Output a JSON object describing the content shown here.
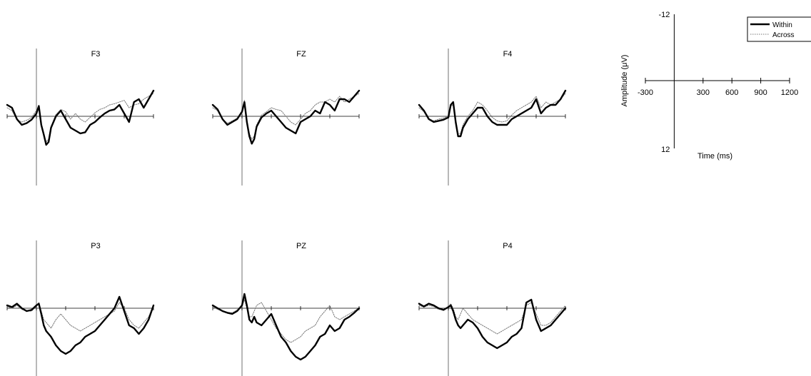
{
  "chart_data": {
    "type": "line",
    "xlabel": "Time (ms)",
    "ylabel": "Amplitude (μV)",
    "xlim": [
      -300,
      1200
    ],
    "ylim": [
      -12,
      12
    ],
    "y_inverted": true,
    "x_ticks": [
      -300,
      300,
      600,
      900,
      1200
    ],
    "y_ticks": [
      -12,
      12
    ],
    "legend": {
      "position": "top-right",
      "entries": [
        {
          "name": "Within",
          "style": "thick-solid",
          "color": "#000000"
        },
        {
          "name": "Across",
          "style": "thin-dotted",
          "color": "#777777"
        }
      ]
    },
    "panels": [
      {
        "name": "F3",
        "x": [
          -300,
          -250,
          -200,
          -150,
          -100,
          -50,
          0,
          25,
          50,
          75,
          100,
          125,
          150,
          200,
          250,
          300,
          350,
          400,
          450,
          500,
          550,
          600,
          650,
          700,
          750,
          800,
          850,
          900,
          950,
          1000,
          1050,
          1100,
          1150,
          1200
        ],
        "series": [
          {
            "name": "Within",
            "values": [
              -2.0,
              -1.5,
              0.5,
              1.5,
              1.2,
              0.6,
              -0.5,
              -1.8,
              1.5,
              3.2,
              5.0,
              4.5,
              2.0,
              0.0,
              -1.0,
              0.5,
              2.0,
              2.5,
              3.0,
              2.8,
              1.5,
              1.0,
              0.2,
              -0.5,
              -1.0,
              -1.2,
              -2.0,
              -0.5,
              1.0,
              -2.5,
              -3.0,
              -1.5,
              -3.0,
              -4.5
            ]
          },
          {
            "name": "Across",
            "values": [
              -1.5,
              -1.0,
              0.6,
              1.0,
              0.7,
              0.2,
              -1.0,
              -2.0,
              1.5,
              3.0,
              4.5,
              4.0,
              1.8,
              -0.3,
              -1.2,
              -0.8,
              0.5,
              -0.5,
              0.5,
              1.0,
              0.2,
              -0.6,
              -1.2,
              -1.5,
              -2.0,
              -2.2,
              -2.5,
              -2.8,
              -1.5,
              -2.0,
              -2.2,
              -3.0,
              -3.5,
              -4.0
            ]
          }
        ]
      },
      {
        "name": "FZ",
        "x": [
          -300,
          -250,
          -200,
          -150,
          -100,
          -50,
          0,
          25,
          50,
          75,
          100,
          125,
          150,
          200,
          250,
          300,
          350,
          400,
          450,
          500,
          550,
          600,
          650,
          700,
          750,
          800,
          850,
          900,
          950,
          1000,
          1050,
          1100,
          1150,
          1200
        ],
        "series": [
          {
            "name": "Within",
            "values": [
              -2.0,
              -1.2,
              0.5,
              1.5,
              1.0,
              0.5,
              -0.8,
              -2.5,
              1.0,
              3.5,
              4.8,
              4.0,
              1.8,
              0.2,
              -0.5,
              -1.0,
              0.0,
              1.0,
              2.0,
              2.5,
              3.0,
              1.0,
              0.5,
              0.0,
              -1.0,
              -0.5,
              -2.5,
              -2.0,
              -1.0,
              -3.0,
              -3.0,
              -2.5,
              -3.5,
              -4.5
            ]
          },
          {
            "name": "Across",
            "values": [
              -1.5,
              -1.0,
              0.5,
              1.2,
              0.8,
              0.3,
              -1.0,
              -2.8,
              1.0,
              3.0,
              4.0,
              3.5,
              1.5,
              -0.2,
              -0.8,
              -1.5,
              -1.2,
              -1.0,
              0.0,
              1.0,
              1.5,
              0.5,
              -0.5,
              -1.0,
              -2.0,
              -2.5,
              -2.5,
              -3.0,
              -2.5,
              -3.5,
              -2.5,
              -3.0,
              -3.5,
              -4.0
            ]
          }
        ]
      },
      {
        "name": "F4",
        "x": [
          -300,
          -250,
          -200,
          -150,
          -100,
          -50,
          0,
          25,
          50,
          75,
          100,
          125,
          150,
          200,
          250,
          300,
          350,
          400,
          450,
          500,
          550,
          600,
          650,
          700,
          750,
          800,
          850,
          900,
          950,
          1000,
          1050,
          1100,
          1150,
          1200
        ],
        "series": [
          {
            "name": "Within",
            "values": [
              -2.0,
              -1.0,
              0.5,
              1.0,
              0.8,
              0.6,
              0.2,
              -2.0,
              -2.5,
              1.0,
              3.5,
              3.5,
              2.0,
              0.5,
              -0.5,
              -1.5,
              -1.5,
              0.0,
              1.0,
              1.5,
              1.5,
              1.5,
              0.5,
              0.0,
              -0.5,
              -1.0,
              -1.5,
              -3.0,
              -0.5,
              -1.5,
              -2.0,
              -2.0,
              -3.0,
              -4.5
            ]
          },
          {
            "name": "Across",
            "values": [
              -1.5,
              -0.8,
              0.4,
              0.8,
              0.5,
              0.3,
              0.0,
              -1.8,
              -2.0,
              1.0,
              3.0,
              3.0,
              1.5,
              0.0,
              -1.0,
              -2.5,
              -2.0,
              -1.0,
              0.2,
              0.8,
              1.0,
              0.8,
              -0.2,
              -1.0,
              -1.5,
              -2.0,
              -2.5,
              -3.5,
              -1.5,
              -2.5,
              -2.0,
              -2.5,
              -3.0,
              -4.0
            ]
          }
        ]
      },
      {
        "name": "P3",
        "x": [
          -300,
          -250,
          -200,
          -150,
          -100,
          -50,
          0,
          25,
          50,
          75,
          100,
          125,
          150,
          200,
          250,
          300,
          350,
          400,
          450,
          500,
          550,
          600,
          650,
          700,
          750,
          800,
          850,
          900,
          950,
          1000,
          1050,
          1100,
          1150,
          1200
        ],
        "series": [
          {
            "name": "Within",
            "values": [
              -0.5,
              -0.2,
              -0.8,
              0.0,
              0.5,
              0.3,
              -0.5,
              -0.8,
              1.0,
              3.0,
              4.0,
              4.5,
              5.0,
              6.5,
              7.5,
              8.0,
              7.5,
              6.5,
              6.0,
              5.0,
              4.5,
              4.0,
              3.0,
              2.0,
              1.0,
              0.0,
              -2.0,
              0.5,
              3.0,
              3.5,
              4.5,
              3.5,
              2.0,
              -0.5
            ]
          },
          {
            "name": "Across",
            "values": [
              -0.3,
              0.0,
              -0.5,
              0.2,
              0.5,
              0.5,
              -0.3,
              -1.0,
              0.5,
              2.0,
              2.5,
              3.0,
              3.5,
              2.0,
              1.0,
              2.0,
              3.0,
              3.5,
              4.0,
              3.5,
              3.0,
              2.5,
              2.0,
              1.5,
              1.0,
              0.5,
              -1.0,
              0.0,
              2.0,
              3.0,
              3.5,
              2.5,
              1.5,
              -0.5
            ]
          }
        ]
      },
      {
        "name": "PZ",
        "x": [
          -300,
          -250,
          -200,
          -150,
          -100,
          -50,
          0,
          25,
          50,
          75,
          100,
          125,
          150,
          200,
          250,
          300,
          350,
          400,
          450,
          500,
          550,
          600,
          650,
          700,
          750,
          800,
          850,
          900,
          950,
          1000,
          1050,
          1100,
          1150,
          1200
        ],
        "series": [
          {
            "name": "Within",
            "values": [
              -0.5,
              0.0,
              0.5,
              0.8,
              1.0,
              0.5,
              -0.5,
              -2.5,
              -0.5,
              2.0,
              2.5,
              1.5,
              2.5,
              3.0,
              2.0,
              1.0,
              3.0,
              5.0,
              6.0,
              7.5,
              8.5,
              9.0,
              8.5,
              7.5,
              6.5,
              5.0,
              4.5,
              3.0,
              4.0,
              3.5,
              2.0,
              1.5,
              0.8,
              0.0
            ]
          },
          {
            "name": "Across",
            "values": [
              -0.3,
              0.2,
              0.5,
              0.7,
              0.8,
              0.3,
              -0.3,
              -1.5,
              0.0,
              1.5,
              1.5,
              0.5,
              -0.5,
              -1.0,
              0.5,
              2.0,
              3.5,
              4.5,
              5.5,
              6.0,
              5.5,
              5.0,
              4.0,
              3.5,
              3.0,
              1.5,
              0.5,
              -0.5,
              1.5,
              2.0,
              1.5,
              1.0,
              0.5,
              0.0
            ]
          }
        ]
      },
      {
        "name": "P4",
        "x": [
          -300,
          -250,
          -200,
          -150,
          -100,
          -50,
          0,
          25,
          50,
          75,
          100,
          125,
          150,
          200,
          250,
          300,
          350,
          400,
          450,
          500,
          550,
          600,
          650,
          700,
          750,
          800,
          850,
          900,
          950,
          1000,
          1050,
          1100,
          1150,
          1200
        ],
        "series": [
          {
            "name": "Within",
            "values": [
              -0.8,
              -0.3,
              -0.8,
              -0.5,
              0.0,
              0.3,
              -0.2,
              -0.5,
              0.5,
              2.0,
              3.0,
              3.5,
              3.0,
              2.0,
              2.5,
              3.5,
              5.0,
              6.0,
              6.5,
              7.0,
              6.5,
              6.0,
              5.0,
              4.5,
              3.5,
              -1.0,
              -1.5,
              2.0,
              4.0,
              3.5,
              3.0,
              2.0,
              1.0,
              0.0
            ]
          },
          {
            "name": "Across",
            "values": [
              -0.5,
              -0.2,
              -0.5,
              -0.3,
              0.2,
              0.3,
              -0.2,
              -0.8,
              0.0,
              1.5,
              2.0,
              1.0,
              0.0,
              1.0,
              2.0,
              2.5,
              3.0,
              3.5,
              4.0,
              4.5,
              4.0,
              3.5,
              3.0,
              2.5,
              2.0,
              -0.5,
              -1.0,
              1.0,
              3.0,
              3.0,
              2.5,
              1.5,
              0.5,
              -0.5
            ]
          }
        ]
      }
    ]
  }
}
